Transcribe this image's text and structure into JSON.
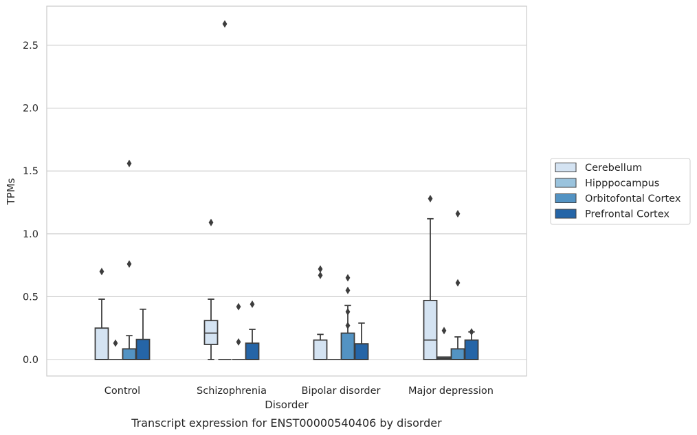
{
  "chart_data": {
    "type": "box",
    "title": "Transcript expression for ENST00000540406 by disorder",
    "xlabel": "Disorder",
    "ylabel": "TPMs",
    "ylim": [
      -0.13,
      2.81
    ],
    "yticks": [
      0.0,
      0.5,
      1.0,
      1.5,
      2.0,
      2.5
    ],
    "ytick_labels": [
      "0.0",
      "0.5",
      "1.0",
      "1.5",
      "2.0",
      "2.5"
    ],
    "grid": "horizontal",
    "legend_position": "right",
    "categories": [
      "Control",
      "Schizophrenia",
      "Bipolar disorder",
      "Major depression"
    ],
    "series": [
      {
        "name": "Cerebellum",
        "color": "#d4e3f2",
        "boxes": [
          {
            "q1": 0.0,
            "median": 0.0,
            "q3": 0.25,
            "whisker_low": 0.0,
            "whisker_high": 0.48,
            "outliers": [
              0.7
            ]
          },
          {
            "q1": 0.12,
            "median": 0.21,
            "q3": 0.31,
            "whisker_low": 0.0,
            "whisker_high": 0.48,
            "outliers": [
              1.09
            ]
          },
          {
            "q1": 0.0,
            "median": 0.0,
            "q3": 0.155,
            "whisker_low": 0.0,
            "whisker_high": 0.2,
            "outliers": [
              0.67,
              0.72
            ]
          },
          {
            "q1": 0.0,
            "median": 0.155,
            "q3": 0.47,
            "whisker_low": 0.0,
            "whisker_high": 1.12,
            "outliers": [
              1.28
            ]
          }
        ]
      },
      {
        "name": "Hipppocampus",
        "color": "#9ac3dd",
        "boxes": [
          {
            "q1": 0.0,
            "median": 0.0,
            "q3": 0.0,
            "whisker_low": 0.0,
            "whisker_high": 0.0,
            "outliers": [
              0.13
            ]
          },
          {
            "q1": 0.0,
            "median": 0.0,
            "q3": 0.0,
            "whisker_low": 0.0,
            "whisker_high": 0.0,
            "outliers": [
              2.67
            ]
          },
          {
            "q1": 0.0,
            "median": 0.0,
            "q3": 0.0,
            "whisker_low": 0.0,
            "whisker_high": 0.0,
            "outliers": []
          },
          {
            "q1": 0.0,
            "median": 0.01,
            "q3": 0.02,
            "whisker_low": 0.0,
            "whisker_high": 0.02,
            "outliers": [
              0.23
            ]
          }
        ]
      },
      {
        "name": "Orbitofontal Cortex",
        "color": "#5393c3",
        "boxes": [
          {
            "q1": 0.0,
            "median": 0.0,
            "q3": 0.085,
            "whisker_low": 0.0,
            "whisker_high": 0.19,
            "outliers": [
              0.76,
              1.56
            ]
          },
          {
            "q1": 0.0,
            "median": 0.0,
            "q3": 0.0,
            "whisker_low": 0.0,
            "whisker_high": 0.0,
            "outliers": [
              0.14,
              0.42
            ]
          },
          {
            "q1": 0.0,
            "median": 0.0,
            "q3": 0.21,
            "whisker_low": 0.0,
            "whisker_high": 0.43,
            "outliers": [
              0.27,
              0.38,
              0.55,
              0.65
            ]
          },
          {
            "q1": 0.0,
            "median": 0.0,
            "q3": 0.085,
            "whisker_low": 0.0,
            "whisker_high": 0.18,
            "outliers": [
              0.61,
              1.16
            ]
          }
        ]
      },
      {
        "name": "Prefrontal Cortex",
        "color": "#2565a7",
        "boxes": [
          {
            "q1": 0.0,
            "median": 0.0,
            "q3": 0.16,
            "whisker_low": 0.0,
            "whisker_high": 0.4,
            "outliers": []
          },
          {
            "q1": 0.0,
            "median": 0.0,
            "q3": 0.13,
            "whisker_low": 0.0,
            "whisker_high": 0.24,
            "outliers": [
              0.44
            ]
          },
          {
            "q1": 0.0,
            "median": 0.0,
            "q3": 0.125,
            "whisker_low": 0.0,
            "whisker_high": 0.29,
            "outliers": []
          },
          {
            "q1": 0.0,
            "median": 0.0,
            "q3": 0.155,
            "whisker_low": 0.0,
            "whisker_high": 0.22,
            "outliers": [
              0.22
            ]
          }
        ]
      }
    ]
  }
}
